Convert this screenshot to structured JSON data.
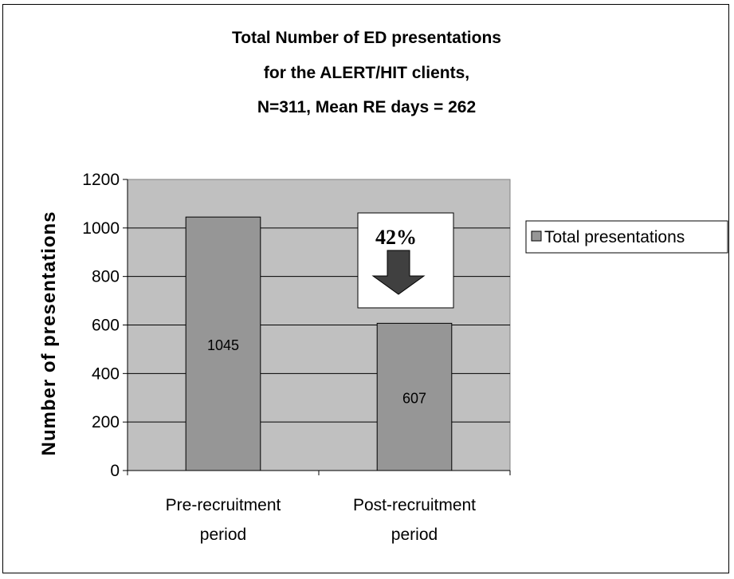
{
  "chart_data": {
    "type": "bar",
    "title_lines": [
      "Total Number of ED presentations",
      "for the ALERT/HIT clients,",
      "N=311, Mean RE days = 262"
    ],
    "categories": [
      [
        "Pre-recruitment",
        "period"
      ],
      [
        "Post-recruitment",
        "period"
      ]
    ],
    "series": [
      {
        "name": "Total presentations",
        "values": [
          1045,
          607
        ]
      }
    ],
    "data_labels": [
      "1045",
      "607"
    ],
    "ylabel": "Number of presentations",
    "ylim": [
      0,
      1200
    ],
    "yticks": [
      0,
      200,
      400,
      600,
      800,
      1000,
      1200
    ],
    "grid": true,
    "legend": "right",
    "annotation": {
      "text": "42%",
      "icon": "down-arrow-icon"
    },
    "colors": {
      "plot_bg": "#c0c0c0",
      "bar": "#969696",
      "frame": "#000000"
    }
  }
}
